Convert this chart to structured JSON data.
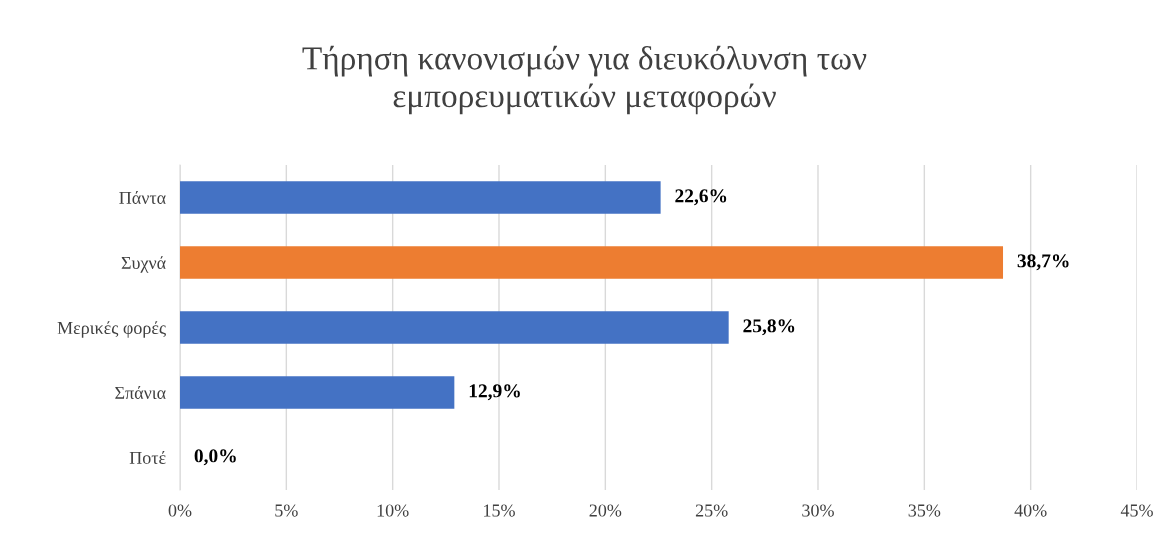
{
  "chart_data": {
    "type": "bar",
    "orientation": "horizontal",
    "title": "Τήρηση κανονισμών για διευκόλυνση των\nεμπορευματικών μεταφορών",
    "categories": [
      "Πάντα",
      "Συχνά",
      "Μερικές φορές",
      "Σπάνια",
      "Ποτέ"
    ],
    "values": [
      22.6,
      38.7,
      25.8,
      12.9,
      0.0
    ],
    "colors": [
      "#4472c4",
      "#ed7d31",
      "#4472c4",
      "#4472c4",
      "#4472c4"
    ],
    "value_labels": [
      "22,6%",
      "38,7%",
      "25,8%",
      "12,9%",
      "0,0%"
    ],
    "xlim": [
      0,
      45
    ],
    "xticks": [
      {
        "value": 0,
        "label": "0%"
      },
      {
        "value": 5,
        "label": "5%"
      },
      {
        "value": 10,
        "label": "10%"
      },
      {
        "value": 15,
        "label": "15%"
      },
      {
        "value": 20,
        "label": "20%"
      },
      {
        "value": 25,
        "label": "25%"
      },
      {
        "value": 30,
        "label": "30%"
      },
      {
        "value": 35,
        "label": "35%"
      },
      {
        "value": 40,
        "label": "40%"
      },
      {
        "value": 45,
        "label": "45%"
      }
    ],
    "grid": "x",
    "legend": false
  }
}
